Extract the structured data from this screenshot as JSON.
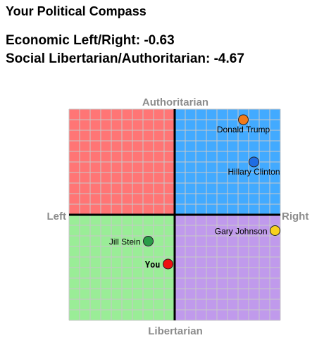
{
  "header": {
    "title": "Your Political Compass",
    "economic_line": "Economic Left/Right: -0.63",
    "social_line": "Social Libertarian/Authoritarian: -4.67"
  },
  "chart_data": {
    "type": "scatter",
    "title": "",
    "axes": {
      "top": "Authoritarian",
      "bottom": "Libertarian",
      "left": "Left",
      "right": "Right"
    },
    "xlim": [
      -10,
      10
    ],
    "ylim": [
      -10,
      10
    ],
    "grid": true,
    "quadrant_colors": {
      "authoritarian_left": "#ff7575",
      "authoritarian_right": "#42aaff",
      "libertarian_left": "#9aed97",
      "libertarian_right": "#c09aec"
    },
    "points": [
      {
        "label": "Donald Trump",
        "x": 6.5,
        "y": 9.0,
        "color": "#f27a1a",
        "label_side": "below"
      },
      {
        "label": "Hillary Clinton",
        "x": 7.5,
        "y": 5.0,
        "color": "#1f6de3",
        "label_side": "below"
      },
      {
        "label": "Gary Johnson",
        "x": 9.5,
        "y": -1.5,
        "color": "#f7d21e",
        "label_side": "left"
      },
      {
        "label": "Jill Stein",
        "x": -2.5,
        "y": -2.5,
        "color": "#2a9d48",
        "label_side": "left"
      },
      {
        "label": "You",
        "x": -0.63,
        "y": -4.67,
        "color": "#ee1111",
        "label_side": "left"
      }
    ]
  }
}
